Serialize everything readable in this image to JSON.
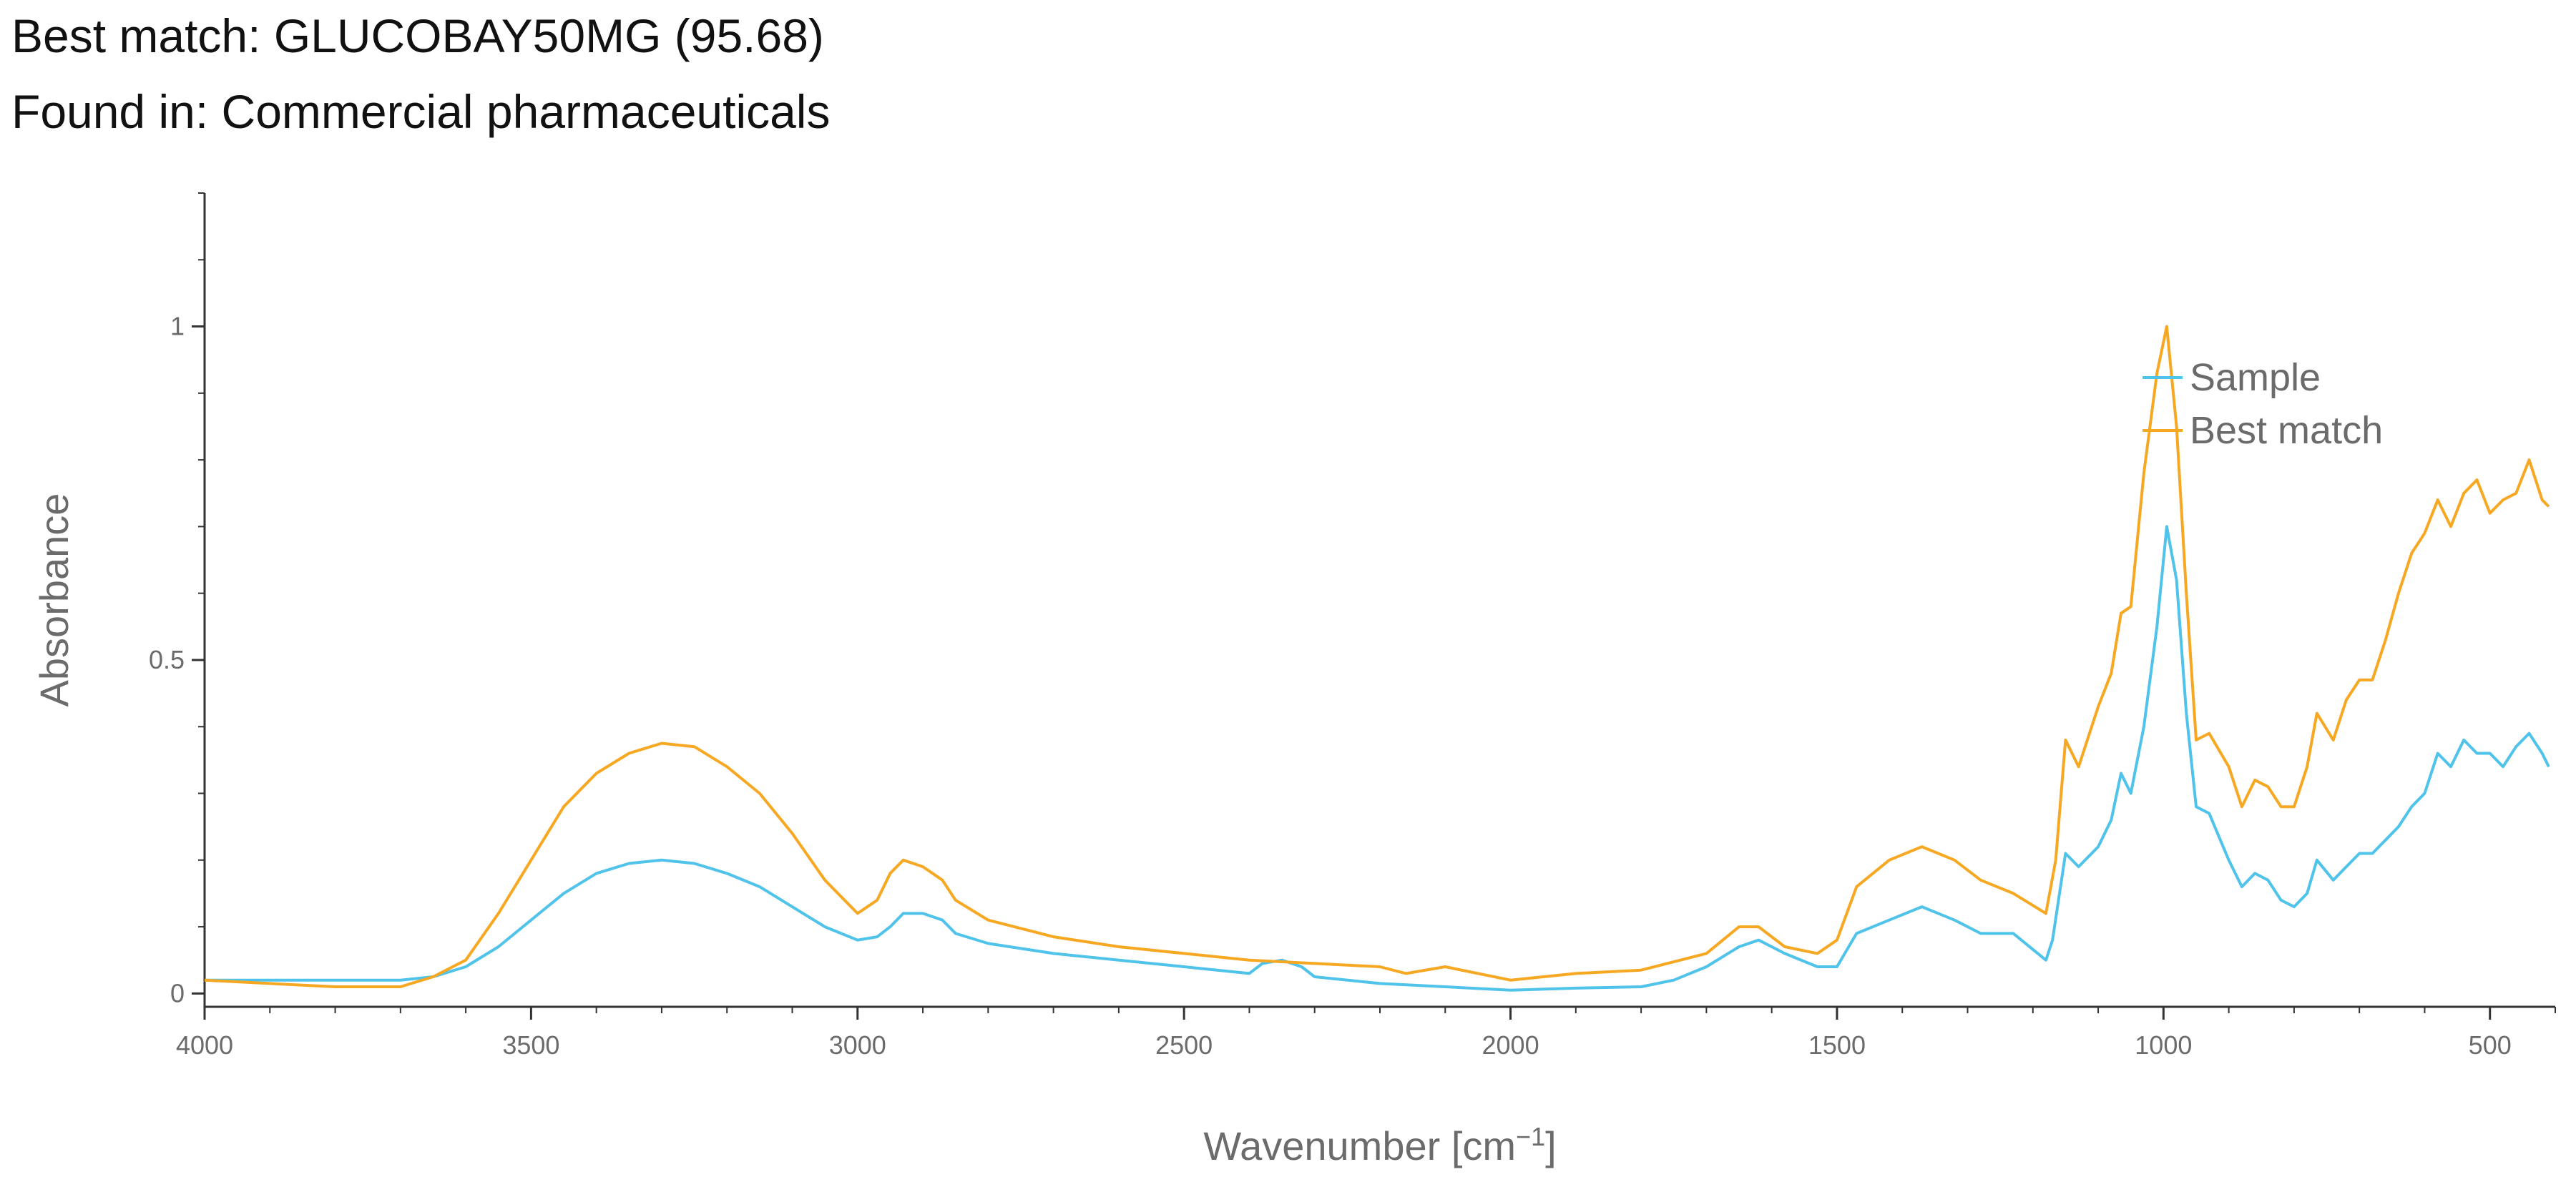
{
  "header": {
    "best_match_prefix": "Best match: ",
    "best_match_name": "GLUCOBAY50MG",
    "best_match_score": "(95.68)",
    "found_in_prefix": "Found in: ",
    "found_in_value": "Commercial pharmaceuticals"
  },
  "colors": {
    "sample": "#4fc3ea",
    "best_match": "#f7a823",
    "axis": "#333333",
    "text": "#6b6b6b"
  },
  "chart_data": {
    "type": "line",
    "xlabel": "Wavenumber [cm",
    "xlabel_sup": "−1",
    "xlabel_close": "]",
    "ylabel": "Absorbance",
    "xlim": [
      4000,
      400
    ],
    "ylim": [
      -0.02,
      1.2
    ],
    "xticks": [
      4000,
      3500,
      3000,
      2500,
      2000,
      1500,
      1000,
      500
    ],
    "xtick_labels": [
      "4000",
      "3500",
      "3000",
      "2500",
      "2000",
      "1500",
      "1000",
      "500"
    ],
    "yticks": [
      0,
      0.5,
      1
    ],
    "ytick_labels": [
      "0",
      "0.5",
      "1"
    ],
    "legend_position": "top-right",
    "grid": false,
    "series": [
      {
        "name": "Sample",
        "color_key": "sample",
        "points": [
          [
            4000,
            0.02
          ],
          [
            3900,
            0.02
          ],
          [
            3800,
            0.02
          ],
          [
            3700,
            0.02
          ],
          [
            3650,
            0.025
          ],
          [
            3600,
            0.04
          ],
          [
            3550,
            0.07
          ],
          [
            3500,
            0.11
          ],
          [
            3450,
            0.15
          ],
          [
            3400,
            0.18
          ],
          [
            3350,
            0.195
          ],
          [
            3300,
            0.2
          ],
          [
            3250,
            0.195
          ],
          [
            3200,
            0.18
          ],
          [
            3150,
            0.16
          ],
          [
            3100,
            0.13
          ],
          [
            3050,
            0.1
          ],
          [
            3000,
            0.08
          ],
          [
            2970,
            0.085
          ],
          [
            2950,
            0.1
          ],
          [
            2930,
            0.12
          ],
          [
            2900,
            0.12
          ],
          [
            2870,
            0.11
          ],
          [
            2850,
            0.09
          ],
          [
            2800,
            0.075
          ],
          [
            2700,
            0.06
          ],
          [
            2600,
            0.05
          ],
          [
            2500,
            0.04
          ],
          [
            2400,
            0.03
          ],
          [
            2380,
            0.045
          ],
          [
            2350,
            0.05
          ],
          [
            2320,
            0.04
          ],
          [
            2300,
            0.025
          ],
          [
            2200,
            0.015
          ],
          [
            2100,
            0.01
          ],
          [
            2000,
            0.005
          ],
          [
            1900,
            0.008
          ],
          [
            1800,
            0.01
          ],
          [
            1750,
            0.02
          ],
          [
            1700,
            0.04
          ],
          [
            1650,
            0.07
          ],
          [
            1620,
            0.08
          ],
          [
            1580,
            0.06
          ],
          [
            1530,
            0.04
          ],
          [
            1500,
            0.04
          ],
          [
            1470,
            0.09
          ],
          [
            1420,
            0.11
          ],
          [
            1370,
            0.13
          ],
          [
            1320,
            0.11
          ],
          [
            1280,
            0.09
          ],
          [
            1230,
            0.09
          ],
          [
            1180,
            0.05
          ],
          [
            1170,
            0.08
          ],
          [
            1150,
            0.21
          ],
          [
            1130,
            0.19
          ],
          [
            1100,
            0.22
          ],
          [
            1080,
            0.26
          ],
          [
            1065,
            0.33
          ],
          [
            1050,
            0.3
          ],
          [
            1030,
            0.4
          ],
          [
            1010,
            0.55
          ],
          [
            995,
            0.7
          ],
          [
            980,
            0.62
          ],
          [
            965,
            0.42
          ],
          [
            950,
            0.28
          ],
          [
            930,
            0.27
          ],
          [
            900,
            0.2
          ],
          [
            880,
            0.16
          ],
          [
            860,
            0.18
          ],
          [
            840,
            0.17
          ],
          [
            820,
            0.14
          ],
          [
            800,
            0.13
          ],
          [
            780,
            0.15
          ],
          [
            765,
            0.2
          ],
          [
            740,
            0.17
          ],
          [
            720,
            0.19
          ],
          [
            700,
            0.21
          ],
          [
            680,
            0.21
          ],
          [
            660,
            0.23
          ],
          [
            640,
            0.25
          ],
          [
            620,
            0.28
          ],
          [
            600,
            0.3
          ],
          [
            580,
            0.36
          ],
          [
            560,
            0.34
          ],
          [
            540,
            0.38
          ],
          [
            520,
            0.36
          ],
          [
            500,
            0.36
          ],
          [
            480,
            0.34
          ],
          [
            460,
            0.37
          ],
          [
            440,
            0.39
          ],
          [
            420,
            0.36
          ],
          [
            410,
            0.34
          ]
        ]
      },
      {
        "name": "Best match",
        "color_key": "best_match",
        "points": [
          [
            4000,
            0.02
          ],
          [
            3900,
            0.015
          ],
          [
            3800,
            0.01
          ],
          [
            3700,
            0.01
          ],
          [
            3650,
            0.025
          ],
          [
            3600,
            0.05
          ],
          [
            3550,
            0.12
          ],
          [
            3500,
            0.2
          ],
          [
            3450,
            0.28
          ],
          [
            3400,
            0.33
          ],
          [
            3350,
            0.36
          ],
          [
            3300,
            0.375
          ],
          [
            3250,
            0.37
          ],
          [
            3200,
            0.34
          ],
          [
            3150,
            0.3
          ],
          [
            3100,
            0.24
          ],
          [
            3050,
            0.17
          ],
          [
            3000,
            0.12
          ],
          [
            2970,
            0.14
          ],
          [
            2950,
            0.18
          ],
          [
            2930,
            0.2
          ],
          [
            2900,
            0.19
          ],
          [
            2870,
            0.17
          ],
          [
            2850,
            0.14
          ],
          [
            2800,
            0.11
          ],
          [
            2700,
            0.085
          ],
          [
            2600,
            0.07
          ],
          [
            2500,
            0.06
          ],
          [
            2400,
            0.05
          ],
          [
            2300,
            0.045
          ],
          [
            2200,
            0.04
          ],
          [
            2160,
            0.03
          ],
          [
            2100,
            0.04
          ],
          [
            2000,
            0.02
          ],
          [
            1900,
            0.03
          ],
          [
            1800,
            0.035
          ],
          [
            1700,
            0.06
          ],
          [
            1650,
            0.1
          ],
          [
            1620,
            0.1
          ],
          [
            1580,
            0.07
          ],
          [
            1530,
            0.06
          ],
          [
            1500,
            0.08
          ],
          [
            1470,
            0.16
          ],
          [
            1420,
            0.2
          ],
          [
            1370,
            0.22
          ],
          [
            1320,
            0.2
          ],
          [
            1280,
            0.17
          ],
          [
            1230,
            0.15
          ],
          [
            1180,
            0.12
          ],
          [
            1165,
            0.2
          ],
          [
            1150,
            0.38
          ],
          [
            1130,
            0.34
          ],
          [
            1100,
            0.43
          ],
          [
            1080,
            0.48
          ],
          [
            1065,
            0.57
          ],
          [
            1050,
            0.58
          ],
          [
            1030,
            0.78
          ],
          [
            1010,
            0.93
          ],
          [
            995,
            1.0
          ],
          [
            980,
            0.85
          ],
          [
            965,
            0.6
          ],
          [
            950,
            0.38
          ],
          [
            930,
            0.39
          ],
          [
            900,
            0.34
          ],
          [
            880,
            0.28
          ],
          [
            860,
            0.32
          ],
          [
            840,
            0.31
          ],
          [
            820,
            0.28
          ],
          [
            800,
            0.28
          ],
          [
            780,
            0.34
          ],
          [
            765,
            0.42
          ],
          [
            740,
            0.38
          ],
          [
            720,
            0.44
          ],
          [
            700,
            0.47
          ],
          [
            680,
            0.47
          ],
          [
            660,
            0.53
          ],
          [
            640,
            0.6
          ],
          [
            620,
            0.66
          ],
          [
            600,
            0.69
          ],
          [
            580,
            0.74
          ],
          [
            560,
            0.7
          ],
          [
            540,
            0.75
          ],
          [
            520,
            0.77
          ],
          [
            500,
            0.72
          ],
          [
            480,
            0.74
          ],
          [
            460,
            0.75
          ],
          [
            440,
            0.8
          ],
          [
            420,
            0.74
          ],
          [
            410,
            0.73
          ]
        ]
      }
    ]
  }
}
